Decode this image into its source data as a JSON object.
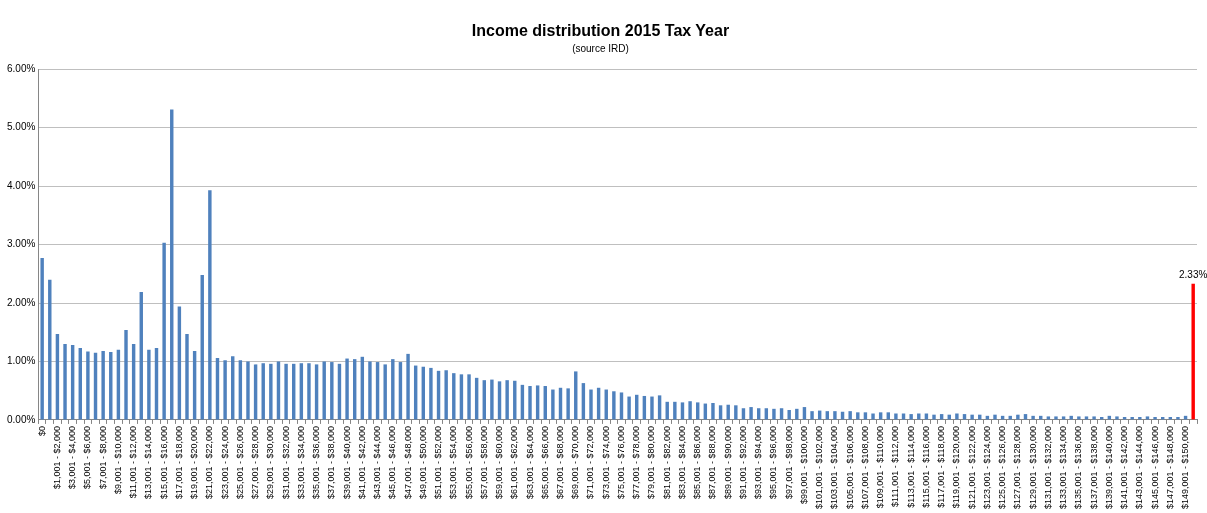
{
  "chart_data": {
    "type": "bar",
    "title": "Income distribution 2015 Tax Year",
    "subtitle": "(source IRD)",
    "categories": [
      "$0",
      null,
      "$1,001 - $2,000",
      null,
      "$3,001 - $4,000",
      null,
      "$5,001 - $6,000",
      null,
      "$7,001 - $8,000",
      null,
      "$9,001 - $10,000",
      null,
      "$11,001 - $12,000",
      null,
      "$13,001 - $14,000",
      null,
      "$15,001 - $16,000",
      null,
      "$17,001 - $18,000",
      null,
      "$19,001 - $20,000",
      null,
      "$21,001 - $22,000",
      null,
      "$23,001 - $24,000",
      null,
      "$25,001 - $26,000",
      null,
      "$27,001 - $28,000",
      null,
      "$29,001 - $30,000",
      null,
      "$31,001 - $32,000",
      null,
      "$33,001 - $34,000",
      null,
      "$35,001 - $36,000",
      null,
      "$37,001 - $38,000",
      null,
      "$39,001 - $40,000",
      null,
      "$41,001 - $42,000",
      null,
      "$43,001 - $44,000",
      null,
      "$45,001 - $46,000",
      null,
      "$47,001 - $48,000",
      null,
      "$49,001 - $50,000",
      null,
      "$51,001 - $52,000",
      null,
      "$53,001 - $54,000",
      null,
      "$55,001 - $56,000",
      null,
      "$57,001 - $58,000",
      null,
      "$59,001 - $60,000",
      null,
      "$61,001 - $62,000",
      null,
      "$63,001 - $64,000",
      null,
      "$65,001 - $66,000",
      null,
      "$67,001 - $68,000",
      null,
      "$69,001 - $70,000",
      null,
      "$71,001 - $72,000",
      null,
      "$73,001 - $74,000",
      null,
      "$75,001 - $76,000",
      null,
      "$77,001 - $78,000",
      null,
      "$79,001 - $80,000",
      null,
      "$81,001 - $82,000",
      null,
      "$83,001 - $84,000",
      null,
      "$85,001 - $86,000",
      null,
      "$87,001 - $88,000",
      null,
      "$89,001 - $90,000",
      null,
      "$91,001 - $92,000",
      null,
      "$93,001 - $94,000",
      null,
      "$95,001 - $96,000",
      null,
      "$97,001 - $98,000",
      null,
      "$99,001 - $100,000",
      null,
      "$101,001 - $102,000",
      null,
      "$103,001 - $104,000",
      null,
      "$105,001 - $106,000",
      null,
      "$107,001 - $108,000",
      null,
      "$109,001 - $110,000",
      null,
      "$111,001 - $112,000",
      null,
      "$113,001 - $114,000",
      null,
      "$115,001 - $116,000",
      null,
      "$117,001 - $118,000",
      null,
      "$119,001 - $120,000",
      null,
      "$121,001 - $122,000",
      null,
      "$123,001 - $124,000",
      null,
      "$125,001 - $126,000",
      null,
      "$127,001 - $128,000",
      null,
      "$129,001 - $130,000",
      null,
      "$131,001 - $132,000",
      null,
      "$133,001 - $134,000",
      null,
      "$135,001 - $136,000",
      null,
      "$137,001 - $138,000",
      null,
      "$139,001 - $140,000",
      null,
      "$141,001 - $142,000",
      null,
      "$143,001 - $144,000",
      null,
      "$145,001 - $146,000",
      null,
      "$147,001 - $148,000",
      null,
      "$149,001 - $150,000",
      null
    ],
    "values": [
      2.77,
      2.4,
      1.47,
      1.3,
      1.28,
      1.23,
      1.17,
      1.15,
      1.18,
      1.16,
      1.2,
      1.54,
      1.3,
      2.19,
      1.2,
      1.23,
      3.03,
      5.31,
      1.94,
      1.47,
      1.18,
      2.48,
      3.93,
      1.06,
      1.02,
      1.09,
      1.02,
      1.0,
      0.95,
      0.97,
      0.96,
      1.0,
      0.96,
      0.96,
      0.97,
      0.97,
      0.95,
      1.0,
      0.99,
      0.96,
      1.05,
      1.04,
      1.08,
      1.0,
      0.99,
      0.95,
      1.04,
      0.99,
      1.13,
      0.93,
      0.91,
      0.89,
      0.84,
      0.85,
      0.8,
      0.78,
      0.78,
      0.72,
      0.68,
      0.69,
      0.66,
      0.68,
      0.67,
      0.6,
      0.58,
      0.59,
      0.58,
      0.52,
      0.55,
      0.54,
      0.83,
      0.63,
      0.52,
      0.55,
      0.52,
      0.49,
      0.47,
      0.4,
      0.43,
      0.41,
      0.4,
      0.42,
      0.31,
      0.31,
      0.3,
      0.32,
      0.3,
      0.28,
      0.29,
      0.25,
      0.26,
      0.25,
      0.2,
      0.22,
      0.2,
      0.2,
      0.19,
      0.2,
      0.17,
      0.19,
      0.22,
      0.15,
      0.16,
      0.15,
      0.15,
      0.14,
      0.15,
      0.13,
      0.13,
      0.11,
      0.13,
      0.13,
      0.11,
      0.11,
      0.1,
      0.11,
      0.11,
      0.09,
      0.1,
      0.09,
      0.11,
      0.1,
      0.09,
      0.09,
      0.07,
      0.09,
      0.07,
      0.07,
      0.09,
      0.1,
      0.07,
      0.07,
      0.06,
      0.06,
      0.06,
      0.07,
      0.06,
      0.06,
      0.06,
      0.05,
      0.07,
      0.06,
      0.05,
      0.05,
      0.05,
      0.06,
      0.05,
      0.05,
      0.05,
      0.05,
      0.07,
      2.33
    ],
    "value_labels": [
      null,
      null,
      null,
      null,
      null,
      null,
      null,
      null,
      null,
      null,
      null,
      null,
      null,
      null,
      null,
      null,
      null,
      null,
      null,
      null,
      null,
      null,
      null,
      null,
      null,
      null,
      null,
      null,
      null,
      null,
      null,
      null,
      null,
      null,
      null,
      null,
      null,
      null,
      null,
      null,
      null,
      null,
      null,
      null,
      null,
      null,
      null,
      null,
      null,
      null,
      null,
      null,
      null,
      null,
      null,
      null,
      null,
      null,
      null,
      null,
      null,
      null,
      null,
      null,
      null,
      null,
      null,
      null,
      null,
      null,
      null,
      null,
      null,
      null,
      null,
      null,
      null,
      null,
      null,
      null,
      null,
      null,
      null,
      null,
      null,
      null,
      null,
      null,
      null,
      null,
      null,
      null,
      null,
      null,
      null,
      null,
      null,
      null,
      null,
      null,
      null,
      null,
      null,
      null,
      null,
      null,
      null,
      null,
      null,
      null,
      null,
      null,
      null,
      null,
      null,
      null,
      null,
      null,
      null,
      null,
      null,
      null,
      null,
      null,
      null,
      null,
      null,
      null,
      null,
      null,
      null,
      null,
      null,
      null,
      null,
      null,
      null,
      null,
      null,
      null,
      null,
      null,
      null,
      null,
      null,
      null,
      null,
      null,
      null,
      null,
      null,
      "2.33%"
    ],
    "colors": [
      "#4f81bd",
      "#4f81bd",
      "#4f81bd",
      "#4f81bd",
      "#4f81bd",
      "#4f81bd",
      "#4f81bd",
      "#4f81bd",
      "#4f81bd",
      "#4f81bd",
      "#4f81bd",
      "#4f81bd",
      "#4f81bd",
      "#4f81bd",
      "#4f81bd",
      "#4f81bd",
      "#4f81bd",
      "#4f81bd",
      "#4f81bd",
      "#4f81bd",
      "#4f81bd",
      "#4f81bd",
      "#4f81bd",
      "#4f81bd",
      "#4f81bd",
      "#4f81bd",
      "#4f81bd",
      "#4f81bd",
      "#4f81bd",
      "#4f81bd",
      "#4f81bd",
      "#4f81bd",
      "#4f81bd",
      "#4f81bd",
      "#4f81bd",
      "#4f81bd",
      "#4f81bd",
      "#4f81bd",
      "#4f81bd",
      "#4f81bd",
      "#4f81bd",
      "#4f81bd",
      "#4f81bd",
      "#4f81bd",
      "#4f81bd",
      "#4f81bd",
      "#4f81bd",
      "#4f81bd",
      "#4f81bd",
      "#4f81bd",
      "#4f81bd",
      "#4f81bd",
      "#4f81bd",
      "#4f81bd",
      "#4f81bd",
      "#4f81bd",
      "#4f81bd",
      "#4f81bd",
      "#4f81bd",
      "#4f81bd",
      "#4f81bd",
      "#4f81bd",
      "#4f81bd",
      "#4f81bd",
      "#4f81bd",
      "#4f81bd",
      "#4f81bd",
      "#4f81bd",
      "#4f81bd",
      "#4f81bd",
      "#4f81bd",
      "#4f81bd",
      "#4f81bd",
      "#4f81bd",
      "#4f81bd",
      "#4f81bd",
      "#4f81bd",
      "#4f81bd",
      "#4f81bd",
      "#4f81bd",
      "#4f81bd",
      "#4f81bd",
      "#4f81bd",
      "#4f81bd",
      "#4f81bd",
      "#4f81bd",
      "#4f81bd",
      "#4f81bd",
      "#4f81bd",
      "#4f81bd",
      "#4f81bd",
      "#4f81bd",
      "#4f81bd",
      "#4f81bd",
      "#4f81bd",
      "#4f81bd",
      "#4f81bd",
      "#4f81bd",
      "#4f81bd",
      "#4f81bd",
      "#4f81bd",
      "#4f81bd",
      "#4f81bd",
      "#4f81bd",
      "#4f81bd",
      "#4f81bd",
      "#4f81bd",
      "#4f81bd",
      "#4f81bd",
      "#4f81bd",
      "#4f81bd",
      "#4f81bd",
      "#4f81bd",
      "#4f81bd",
      "#4f81bd",
      "#4f81bd",
      "#4f81bd",
      "#4f81bd",
      "#4f81bd",
      "#4f81bd",
      "#4f81bd",
      "#4f81bd",
      "#4f81bd",
      "#4f81bd",
      "#4f81bd",
      "#4f81bd",
      "#4f81bd",
      "#4f81bd",
      "#4f81bd",
      "#4f81bd",
      "#4f81bd",
      "#4f81bd",
      "#4f81bd",
      "#4f81bd",
      "#4f81bd",
      "#4f81bd",
      "#4f81bd",
      "#4f81bd",
      "#4f81bd",
      "#4f81bd",
      "#4f81bd",
      "#4f81bd",
      "#4f81bd",
      "#4f81bd",
      "#4f81bd",
      "#4f81bd",
      "#4f81bd",
      "#4f81bd",
      "#4f81bd",
      "#4f81bd",
      "#4f81bd",
      "#ff0000"
    ],
    "ylim": [
      0,
      6
    ],
    "yticks": [
      {
        "value": 0,
        "label": "0.00%"
      },
      {
        "value": 1,
        "label": "1.00%"
      },
      {
        "value": 2,
        "label": "2.00%"
      },
      {
        "value": 3,
        "label": "3.00%"
      },
      {
        "value": 4,
        "label": "4.00%"
      },
      {
        "value": 5,
        "label": "5.00%"
      },
      {
        "value": 6,
        "label": "6.00%"
      }
    ],
    "grid": "y"
  }
}
